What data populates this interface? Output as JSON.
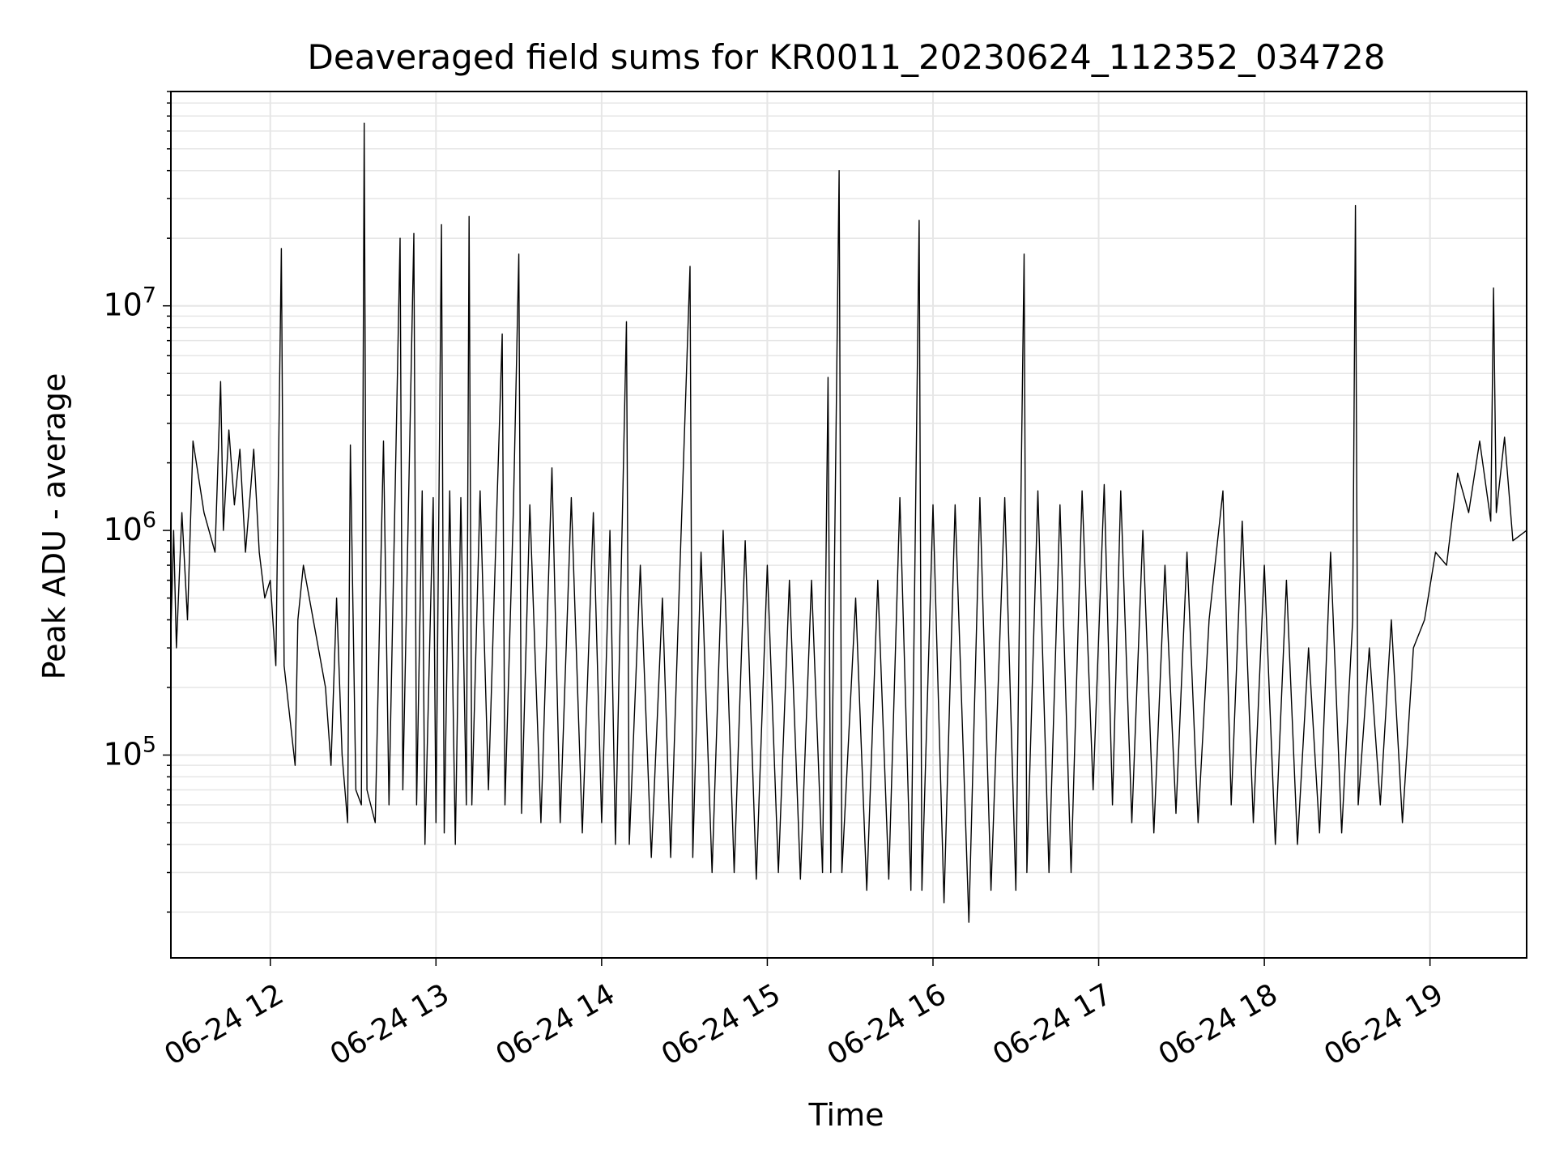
{
  "chart_data": {
    "type": "line",
    "title": "Deaveraged field sums for KR0011_20230624_112352_034728",
    "xlabel": "Time",
    "ylabel": "Peak ADU - average",
    "x_scale": "time",
    "y_scale": "log",
    "xlim": [
      "2023-06-24 11:24",
      "2023-06-24 19:35"
    ],
    "ylim": [
      12500,
      90000000
    ],
    "grid": true,
    "legend": "none",
    "x_ticks": [
      "06-24 12",
      "06-24 13",
      "06-24 14",
      "06-24 15",
      "06-24 16",
      "06-24 17",
      "06-24 18",
      "06-24 19"
    ],
    "x_tick_values": [
      "2023-06-24 12:00",
      "2023-06-24 13:00",
      "2023-06-24 14:00",
      "2023-06-24 15:00",
      "2023-06-24 16:00",
      "2023-06-24 17:00",
      "2023-06-24 18:00",
      "2023-06-24 19:00"
    ],
    "y_ticks": [
      "10^5",
      "10^6",
      "10^7"
    ],
    "y_tick_values": [
      100000,
      1000000,
      10000000
    ],
    "line_color": "#000000",
    "grid_color": "#e6e6e6",
    "series": [
      {
        "points": [
          [
            "2023-06-24 11:24",
            350000
          ],
          [
            "2023-06-24 11:25",
            1000000
          ],
          [
            "2023-06-24 11:26",
            300000
          ],
          [
            "2023-06-24 11:28",
            1200000
          ],
          [
            "2023-06-24 11:30",
            400000
          ],
          [
            "2023-06-24 11:32",
            2500000
          ],
          [
            "2023-06-24 11:36",
            1200000
          ],
          [
            "2023-06-24 11:40",
            800000
          ],
          [
            "2023-06-24 11:42",
            4600000
          ],
          [
            "2023-06-24 11:43",
            1000000
          ],
          [
            "2023-06-24 11:45",
            2800000
          ],
          [
            "2023-06-24 11:47",
            1300000
          ],
          [
            "2023-06-24 11:49",
            2300000
          ],
          [
            "2023-06-24 11:51",
            800000
          ],
          [
            "2023-06-24 11:53",
            1600000
          ],
          [
            "2023-06-24 11:54",
            2300000
          ],
          [
            "2023-06-24 11:56",
            800000
          ],
          [
            "2023-06-24 11:58",
            500000
          ],
          [
            "2023-06-24 12:00",
            600000
          ],
          [
            "2023-06-24 12:02",
            250000
          ],
          [
            "2023-06-24 12:04",
            18000000
          ],
          [
            "2023-06-24 12:05",
            250000
          ],
          [
            "2023-06-24 12:07",
            150000
          ],
          [
            "2023-06-24 12:09",
            90000
          ],
          [
            "2023-06-24 12:10",
            400000
          ],
          [
            "2023-06-24 12:12",
            700000
          ],
          [
            "2023-06-24 12:20",
            200000
          ],
          [
            "2023-06-24 12:22",
            90000
          ],
          [
            "2023-06-24 12:24",
            500000
          ],
          [
            "2023-06-24 12:26",
            100000
          ],
          [
            "2023-06-24 12:28",
            50000
          ],
          [
            "2023-06-24 12:29",
            2400000
          ],
          [
            "2023-06-24 12:31",
            70000
          ],
          [
            "2023-06-24 12:33",
            60000
          ],
          [
            "2023-06-24 12:34",
            65000000
          ],
          [
            "2023-06-24 12:35",
            70000
          ],
          [
            "2023-06-24 12:38",
            50000
          ],
          [
            "2023-06-24 12:41",
            2500000
          ],
          [
            "2023-06-24 12:43",
            60000
          ],
          [
            "2023-06-24 12:47",
            20000000
          ],
          [
            "2023-06-24 12:48",
            70000
          ],
          [
            "2023-06-24 12:52",
            21000000
          ],
          [
            "2023-06-24 12:53",
            60000
          ],
          [
            "2023-06-24 12:55",
            1500000
          ],
          [
            "2023-06-24 12:56",
            40000
          ],
          [
            "2023-06-24 12:59",
            1400000
          ],
          [
            "2023-06-24 13:00",
            50000
          ],
          [
            "2023-06-24 13:02",
            23000000
          ],
          [
            "2023-06-24 13:03",
            45000
          ],
          [
            "2023-06-24 13:05",
            1500000
          ],
          [
            "2023-06-24 13:07",
            40000
          ],
          [
            "2023-06-24 13:09",
            1400000
          ],
          [
            "2023-06-24 13:11",
            60000
          ],
          [
            "2023-06-24 13:12",
            25000000
          ],
          [
            "2023-06-24 13:13",
            60000
          ],
          [
            "2023-06-24 13:16",
            1500000
          ],
          [
            "2023-06-24 13:19",
            70000
          ],
          [
            "2023-06-24 13:22",
            1200000
          ],
          [
            "2023-06-24 13:24",
            7500000
          ],
          [
            "2023-06-24 13:25",
            60000
          ],
          [
            "2023-06-24 13:28",
            1200000
          ],
          [
            "2023-06-24 13:30",
            17000000
          ],
          [
            "2023-06-24 13:31",
            55000
          ],
          [
            "2023-06-24 13:34",
            1300000
          ],
          [
            "2023-06-24 13:38",
            50000
          ],
          [
            "2023-06-24 13:42",
            1900000
          ],
          [
            "2023-06-24 13:45",
            50000
          ],
          [
            "2023-06-24 13:49",
            1400000
          ],
          [
            "2023-06-24 13:53",
            45000
          ],
          [
            "2023-06-24 13:57",
            1200000
          ],
          [
            "2023-06-24 14:00",
            50000
          ],
          [
            "2023-06-24 14:03",
            1000000
          ],
          [
            "2023-06-24 14:05",
            40000
          ],
          [
            "2023-06-24 14:09",
            8500000
          ],
          [
            "2023-06-24 14:10",
            40000
          ],
          [
            "2023-06-24 14:14",
            700000
          ],
          [
            "2023-06-24 14:18",
            35000
          ],
          [
            "2023-06-24 14:22",
            500000
          ],
          [
            "2023-06-24 14:25",
            35000
          ],
          [
            "2023-06-24 14:28",
            500000
          ],
          [
            "2023-06-24 14:32",
            15000000
          ],
          [
            "2023-06-24 14:33",
            35000
          ],
          [
            "2023-06-24 14:36",
            800000
          ],
          [
            "2023-06-24 14:40",
            30000
          ],
          [
            "2023-06-24 14:44",
            1000000
          ],
          [
            "2023-06-24 14:48",
            30000
          ],
          [
            "2023-06-24 14:52",
            900000
          ],
          [
            "2023-06-24 14:56",
            28000
          ],
          [
            "2023-06-24 15:00",
            700000
          ],
          [
            "2023-06-24 15:04",
            30000
          ],
          [
            "2023-06-24 15:08",
            600000
          ],
          [
            "2023-06-24 15:12",
            28000
          ],
          [
            "2023-06-24 15:16",
            600000
          ],
          [
            "2023-06-24 15:20",
            30000
          ],
          [
            "2023-06-24 15:22",
            4800000
          ],
          [
            "2023-06-24 15:23",
            30000
          ],
          [
            "2023-06-24 15:26",
            40000000
          ],
          [
            "2023-06-24 15:27",
            30000
          ],
          [
            "2023-06-24 15:32",
            500000
          ],
          [
            "2023-06-24 15:36",
            25000
          ],
          [
            "2023-06-24 15:40",
            600000
          ],
          [
            "2023-06-24 15:44",
            28000
          ],
          [
            "2023-06-24 15:48",
            1400000
          ],
          [
            "2023-06-24 15:52",
            25000
          ],
          [
            "2023-06-24 15:55",
            24000000
          ],
          [
            "2023-06-24 15:56",
            25000
          ],
          [
            "2023-06-24 16:00",
            1300000
          ],
          [
            "2023-06-24 16:04",
            22000
          ],
          [
            "2023-06-24 16:08",
            1300000
          ],
          [
            "2023-06-24 16:13",
            18000
          ],
          [
            "2023-06-24 16:17",
            1400000
          ],
          [
            "2023-06-24 16:21",
            25000
          ],
          [
            "2023-06-24 16:26",
            1400000
          ],
          [
            "2023-06-24 16:30",
            25000
          ],
          [
            "2023-06-24 16:33",
            17000000
          ],
          [
            "2023-06-24 16:34",
            30000
          ],
          [
            "2023-06-24 16:38",
            1500000
          ],
          [
            "2023-06-24 16:42",
            30000
          ],
          [
            "2023-06-24 16:46",
            1300000
          ],
          [
            "2023-06-24 16:50",
            30000
          ],
          [
            "2023-06-24 16:54",
            1500000
          ],
          [
            "2023-06-24 16:58",
            70000
          ],
          [
            "2023-06-24 17:02",
            1600000
          ],
          [
            "2023-06-24 17:05",
            60000
          ],
          [
            "2023-06-24 17:08",
            1500000
          ],
          [
            "2023-06-24 17:12",
            50000
          ],
          [
            "2023-06-24 17:16",
            1000000
          ],
          [
            "2023-06-24 17:20",
            45000
          ],
          [
            "2023-06-24 17:24",
            700000
          ],
          [
            "2023-06-24 17:28",
            55000
          ],
          [
            "2023-06-24 17:32",
            800000
          ],
          [
            "2023-06-24 17:36",
            50000
          ],
          [
            "2023-06-24 17:40",
            400000
          ],
          [
            "2023-06-24 17:45",
            1500000
          ],
          [
            "2023-06-24 17:48",
            60000
          ],
          [
            "2023-06-24 17:52",
            1100000
          ],
          [
            "2023-06-24 17:56",
            50000
          ],
          [
            "2023-06-24 18:00",
            700000
          ],
          [
            "2023-06-24 18:04",
            40000
          ],
          [
            "2023-06-24 18:08",
            600000
          ],
          [
            "2023-06-24 18:12",
            40000
          ],
          [
            "2023-06-24 18:16",
            300000
          ],
          [
            "2023-06-24 18:20",
            45000
          ],
          [
            "2023-06-24 18:24",
            800000
          ],
          [
            "2023-06-24 18:28",
            45000
          ],
          [
            "2023-06-24 18:32",
            400000
          ],
          [
            "2023-06-24 18:33",
            28000000
          ],
          [
            "2023-06-24 18:34",
            60000
          ],
          [
            "2023-06-24 18:38",
            300000
          ],
          [
            "2023-06-24 18:42",
            60000
          ],
          [
            "2023-06-24 18:46",
            400000
          ],
          [
            "2023-06-24 18:50",
            50000
          ],
          [
            "2023-06-24 18:54",
            300000
          ],
          [
            "2023-06-24 18:58",
            400000
          ],
          [
            "2023-06-24 19:02",
            800000
          ],
          [
            "2023-06-24 19:06",
            700000
          ],
          [
            "2023-06-24 19:10",
            1800000
          ],
          [
            "2023-06-24 19:14",
            1200000
          ],
          [
            "2023-06-24 19:18",
            2500000
          ],
          [
            "2023-06-24 19:22",
            1100000
          ],
          [
            "2023-06-24 19:23",
            12000000
          ],
          [
            "2023-06-24 19:24",
            1200000
          ],
          [
            "2023-06-24 19:27",
            2600000
          ],
          [
            "2023-06-24 19:30",
            900000
          ],
          [
            "2023-06-24 19:35",
            1000000
          ]
        ]
      }
    ]
  }
}
